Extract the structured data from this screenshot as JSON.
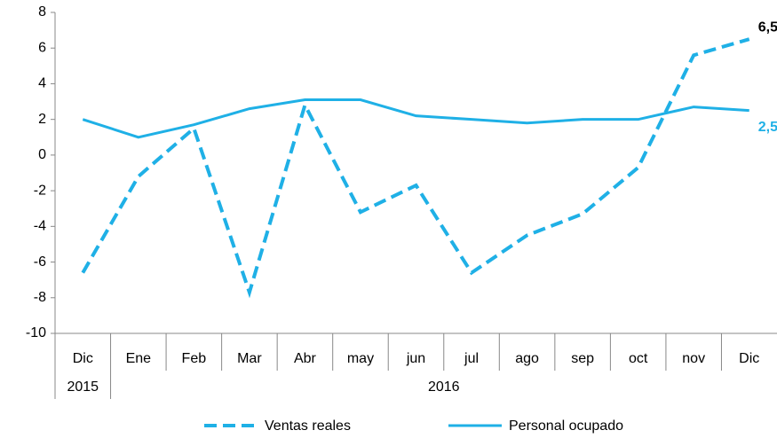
{
  "chart_data": {
    "type": "line",
    "categories": [
      "Dic",
      "Ene",
      "Feb",
      "Mar",
      "Abr",
      "may",
      "jun",
      "jul",
      "ago",
      "sep",
      "oct",
      "nov",
      "Dic"
    ],
    "category_groups": [
      {
        "label": "2015",
        "count": 1
      },
      {
        "label": "2016",
        "count": 12
      }
    ],
    "series": [
      {
        "name": "Ventas reales",
        "color": "#1fb0e6",
        "style": "dashed",
        "label_color": "#000000",
        "values": [
          -6.6,
          -1.2,
          1.5,
          -7.7,
          2.8,
          -3.2,
          -1.7,
          -6.6,
          -4.5,
          -3.3,
          -0.7,
          5.6,
          6.5
        ],
        "value_labels": [
          null,
          null,
          null,
          null,
          null,
          null,
          null,
          null,
          null,
          null,
          null,
          null,
          "6,5"
        ]
      },
      {
        "name": "Personal ocupado",
        "color": "#1fb0e6",
        "style": "solid",
        "label_color": "#1fb0e6",
        "values": [
          2.0,
          1.0,
          1.7,
          2.6,
          3.1,
          3.1,
          2.2,
          2.0,
          1.8,
          2.0,
          2.0,
          2.7,
          2.5
        ],
        "value_labels": [
          null,
          null,
          null,
          null,
          null,
          null,
          null,
          null,
          null,
          null,
          null,
          null,
          "2,5"
        ]
      }
    ],
    "ylim": [
      -10,
      8
    ],
    "yticks": [
      -10,
      -8,
      -6,
      -4,
      -2,
      0,
      2,
      4,
      6,
      8
    ],
    "grid": false
  }
}
